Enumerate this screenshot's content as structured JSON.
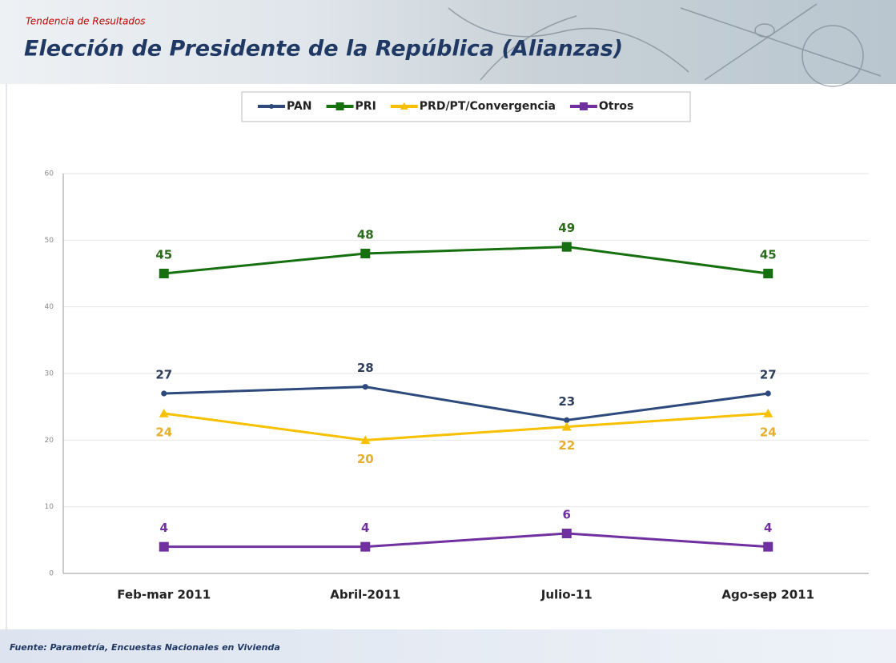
{
  "chart_data": {
    "type": "line",
    "subtitle": "Tendencia de Resultados",
    "title": "Elección de Presidente de la República (Alianzas)",
    "source": "Fuente: Parametría, Encuestas Nacionales en Vivienda",
    "categories": [
      "Feb-mar 2011",
      "Abril-2011",
      "Julio-11",
      "Ago-sep 2011"
    ],
    "series": [
      {
        "name": "PAN",
        "color": "#2e4a7d",
        "label_color": "#2e3f5c",
        "marker": "circle",
        "label_position": "above",
        "values": [
          27,
          28,
          23,
          27
        ]
      },
      {
        "name": "PRI",
        "color": "#17700f",
        "label_color": "#2a6b1a",
        "marker": "square",
        "label_position": "above",
        "values": [
          45,
          48,
          49,
          45
        ]
      },
      {
        "name": "PRD/PT/Convergencia",
        "color": "#f7c000",
        "label_color": "#e6ad2e",
        "marker": "triangle",
        "label_position": "below",
        "values": [
          24,
          20,
          22,
          24
        ]
      },
      {
        "name": "Otros",
        "color": "#7030a0",
        "label_color": "#7030a0",
        "marker": "square",
        "label_position": "above",
        "values": [
          4,
          4,
          6,
          4
        ]
      }
    ],
    "ylim": [
      0,
      60
    ],
    "yticks": [
      0,
      10,
      20,
      30,
      40,
      50,
      60
    ],
    "grid": true,
    "legend": "top"
  }
}
